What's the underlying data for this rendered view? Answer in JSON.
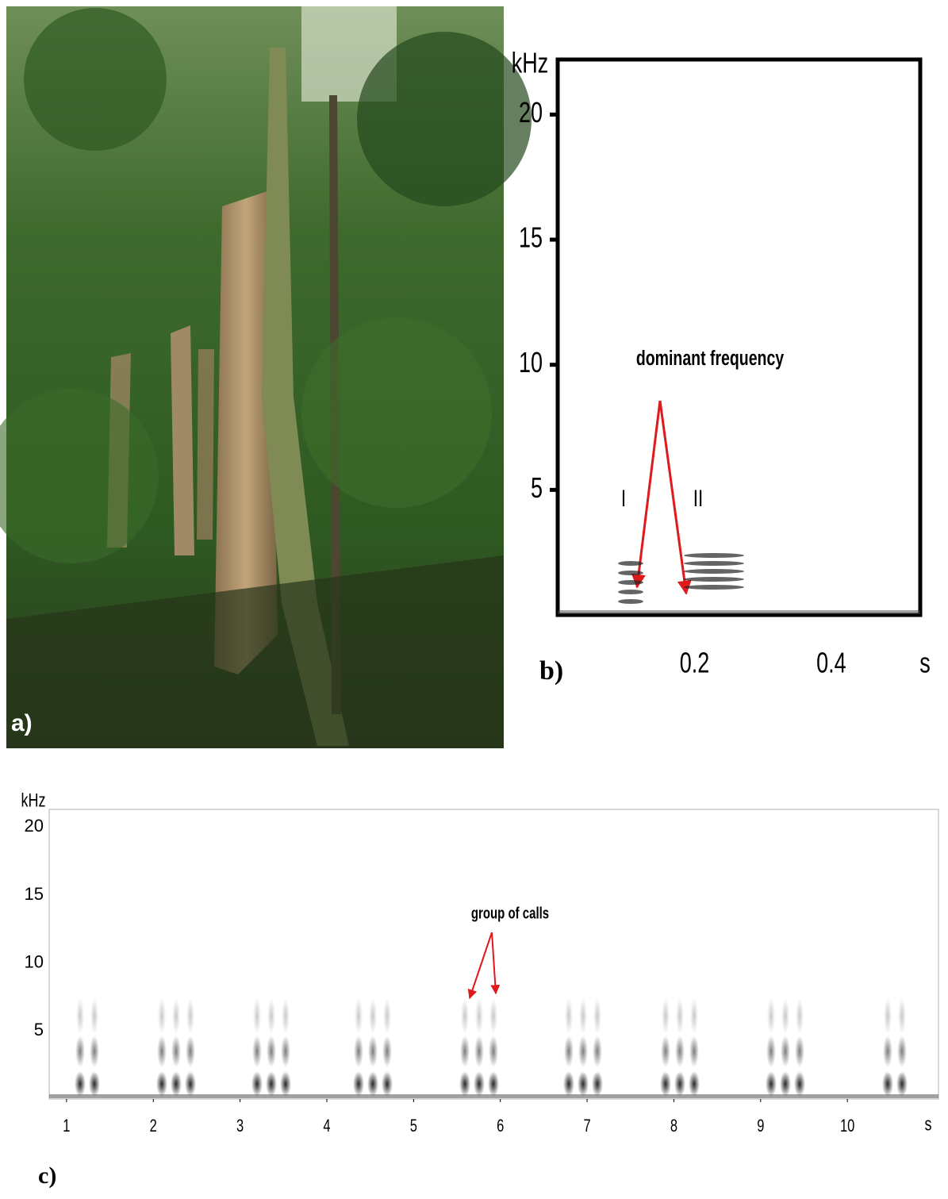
{
  "panels": {
    "a": {
      "label": "a)"
    }
  },
  "chart_data": [
    {
      "type": "spectrogram",
      "panel_label": "b)",
      "y_label": "kHz",
      "x_label": "s",
      "annotation": "dominant frequency",
      "call_labels": [
        "I",
        "II"
      ],
      "xlim": [
        0,
        0.53
      ],
      "ylim": [
        0,
        22.2
      ],
      "xticks": [
        0.2,
        0.4
      ],
      "yticks": [
        5,
        10,
        15,
        20
      ]
    },
    {
      "type": "spectrogram",
      "panel_label": "c)",
      "y_label": "kHz",
      "x_label": "s",
      "annotation": "group of calls",
      "xlim": [
        0.8,
        11.05
      ],
      "ylim": [
        0,
        21.3
      ],
      "xticks": [
        1,
        2,
        3,
        4,
        5,
        6,
        7,
        8,
        9,
        10
      ],
      "yticks": [
        5,
        10,
        15,
        20
      ]
    }
  ]
}
